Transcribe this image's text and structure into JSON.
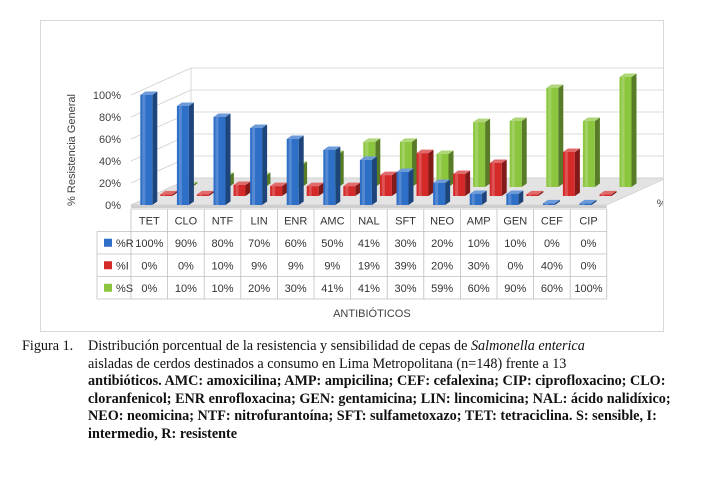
{
  "chart_data": {
    "type": "bar",
    "subtype": "3d-clustered-column-with-data-table",
    "ylabel": "% Resistencia General",
    "xlabel": "ANTIBIÓTICOS",
    "depth_axis_label": "%R",
    "y_ticks": [
      "0%",
      "20%",
      "40%",
      "60%",
      "80%",
      "100%"
    ],
    "ylim": [
      0,
      100
    ],
    "grid": true,
    "legend_placement": "data-table-rows",
    "categories": [
      "TET",
      "CLO",
      "NTF",
      "LIN",
      "ENR",
      "AMC",
      "NAL",
      "SFT",
      "NEO",
      "AMP",
      "GEN",
      "CEF",
      "CIP"
    ],
    "series": [
      {
        "name": "%R",
        "color": "#2e6fc7",
        "values": [
          100,
          90,
          80,
          70,
          60,
          50,
          41,
          30,
          20,
          10,
          10,
          0,
          0
        ],
        "labels": [
          "100%",
          "90%",
          "80%",
          "70%",
          "60%",
          "50%",
          "41%",
          "30%",
          "20%",
          "10%",
          "10%",
          "0%",
          "0%"
        ]
      },
      {
        "name": "%I",
        "color": "#d42a2a",
        "values": [
          0,
          0,
          10,
          9,
          9,
          9,
          19,
          39,
          20,
          30,
          0,
          40,
          0
        ],
        "labels": [
          "0%",
          "0%",
          "10%",
          "9%",
          "9%",
          "9%",
          "19%",
          "39%",
          "20%",
          "30%",
          "0%",
          "40%",
          "0%"
        ]
      },
      {
        "name": "%S",
        "color": "#8cc63f",
        "values": [
          0,
          10,
          10,
          20,
          30,
          41,
          41,
          30,
          59,
          60,
          90,
          60,
          100
        ],
        "labels": [
          "0%",
          "10%",
          "10%",
          "20%",
          "30%",
          "41%",
          "41%",
          "30%",
          "59%",
          "60%",
          "90%",
          "60%",
          "100%"
        ]
      }
    ]
  },
  "caption": {
    "label": "Figura 1.",
    "line1_pre": "Distribución porcentual de la resistencia y sensibilidad de cepas de ",
    "line1_italic": "Salmonella enterica",
    "line2": "aisladas de cerdos destinados a consumo en Lima Metropolitana (n=148) frente a 13",
    "bold_rest": "antibióticos. AMC: amoxicilina; AMP: ampicilina; CEF: cefalexina; CIP: ciprofloxacino; CLO: cloranfenicol; ENR enrofloxacina; GEN: gentamicina; LIN: lincomicina; NAL: ácido nalidíxico; NEO: neomicina; NTF: nitrofurantoína; SFT: sulfametoxazo; TET: tetraciclina.",
    "key_s_letter": "S",
    "key_s_text": ": sensible, ",
    "key_i_letter": "I",
    "key_i_text": ": intermedio, ",
    "key_r_letter": "R",
    "key_r_text": ": resistente"
  }
}
